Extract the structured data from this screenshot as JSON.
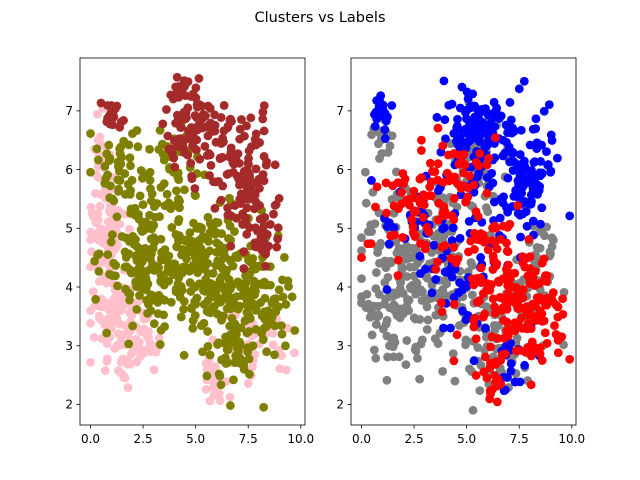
{
  "title": "Clusters vs Labels",
  "chart_data": [
    {
      "type": "scatter",
      "title": "",
      "xlabel": "",
      "ylabel": "",
      "xlim": [
        -0.5,
        10.2
      ],
      "ylim": [
        1.65,
        7.9
      ],
      "xticks": [
        "0.0",
        "2.5",
        "5.0",
        "7.5",
        "10.0"
      ],
      "yticks": [
        "2",
        "3",
        "4",
        "5",
        "6",
        "7"
      ],
      "colored_by": "cluster",
      "series": [
        {
          "color": "#ffc0cb",
          "regions": [
            {
              "cx": 0.7,
              "cy": 4.9,
              "rx": 0.9,
              "ry": 1.0,
              "n": 70
            },
            {
              "cx": 1.3,
              "cy": 3.5,
              "rx": 1.0,
              "ry": 0.7,
              "n": 90
            },
            {
              "cx": 2.3,
              "cy": 3.0,
              "rx": 0.8,
              "ry": 0.4,
              "n": 40
            },
            {
              "cx": 0.5,
              "cy": 6.2,
              "rx": 0.4,
              "ry": 0.6,
              "n": 18
            },
            {
              "cx": 5.8,
              "cy": 2.5,
              "rx": 0.5,
              "ry": 0.5,
              "n": 25
            },
            {
              "cx": 7.2,
              "cy": 2.8,
              "rx": 0.8,
              "ry": 0.6,
              "n": 25
            },
            {
              "cx": 8.5,
              "cy": 3.0,
              "rx": 1.0,
              "ry": 0.5,
              "n": 20
            }
          ]
        },
        {
          "color": "#808000",
          "regions": [
            {
              "cx": 2.8,
              "cy": 4.6,
              "rx": 2.0,
              "ry": 1.1,
              "n": 160
            },
            {
              "cx": 5.5,
              "cy": 4.3,
              "rx": 2.2,
              "ry": 1.1,
              "n": 200
            },
            {
              "cx": 8.0,
              "cy": 3.8,
              "rx": 1.6,
              "ry": 1.0,
              "n": 110
            },
            {
              "cx": 1.5,
              "cy": 6.1,
              "rx": 1.0,
              "ry": 0.6,
              "n": 40
            },
            {
              "cx": 6.5,
              "cy": 2.8,
              "rx": 0.9,
              "ry": 0.6,
              "n": 35
            },
            {
              "cx": 4.0,
              "cy": 6.3,
              "rx": 1.2,
              "ry": 0.5,
              "n": 30
            }
          ]
        },
        {
          "color": "#a52a2a",
          "regions": [
            {
              "cx": 5.2,
              "cy": 6.6,
              "rx": 1.4,
              "ry": 0.7,
              "n": 90
            },
            {
              "cx": 7.5,
              "cy": 5.8,
              "rx": 1.3,
              "ry": 0.9,
              "n": 110
            },
            {
              "cx": 4.5,
              "cy": 7.3,
              "rx": 0.6,
              "ry": 0.3,
              "n": 20
            },
            {
              "cx": 1.0,
              "cy": 6.9,
              "rx": 0.4,
              "ry": 0.25,
              "n": 20
            },
            {
              "cx": 8.2,
              "cy": 4.8,
              "rx": 0.8,
              "ry": 0.4,
              "n": 25
            }
          ]
        }
      ]
    },
    {
      "type": "scatter",
      "title": "",
      "xlabel": "",
      "ylabel": "",
      "xlim": [
        -0.5,
        10.2
      ],
      "ylim": [
        1.65,
        7.9
      ],
      "xticks": [
        "0.0",
        "2.5",
        "5.0",
        "7.5",
        "10.0"
      ],
      "yticks": [
        "2",
        "3",
        "4",
        "5",
        "6",
        "7"
      ],
      "colored_by": "label",
      "series": [
        {
          "color": "#808080",
          "regions": [
            {
              "cx": 1.8,
              "cy": 4.2,
              "rx": 1.7,
              "ry": 1.4,
              "n": 170
            },
            {
              "cx": 3.8,
              "cy": 4.4,
              "rx": 1.4,
              "ry": 1.2,
              "n": 110
            },
            {
              "cx": 6.5,
              "cy": 3.2,
              "rx": 1.8,
              "ry": 1.0,
              "n": 90
            },
            {
              "cx": 5.5,
              "cy": 6.0,
              "rx": 1.2,
              "ry": 0.8,
              "n": 50
            },
            {
              "cx": 8.5,
              "cy": 4.6,
              "rx": 1.0,
              "ry": 0.9,
              "n": 40
            },
            {
              "cx": 1.0,
              "cy": 6.5,
              "rx": 0.5,
              "ry": 0.4,
              "n": 15
            }
          ]
        },
        {
          "color": "#0000ff",
          "regions": [
            {
              "cx": 5.5,
              "cy": 6.6,
              "rx": 1.4,
              "ry": 0.8,
              "n": 130
            },
            {
              "cx": 7.8,
              "cy": 5.9,
              "rx": 1.2,
              "ry": 0.9,
              "n": 110
            },
            {
              "cx": 1.0,
              "cy": 6.9,
              "rx": 0.4,
              "ry": 0.3,
              "n": 22
            },
            {
              "cx": 5.0,
              "cy": 4.3,
              "rx": 2.0,
              "ry": 1.0,
              "n": 50
            },
            {
              "cx": 2.5,
              "cy": 5.0,
              "rx": 1.5,
              "ry": 0.8,
              "n": 30
            },
            {
              "cx": 7.0,
              "cy": 2.7,
              "rx": 1.0,
              "ry": 0.6,
              "n": 20
            }
          ]
        },
        {
          "color": "#ff0000",
          "regions": [
            {
              "cx": 8.0,
              "cy": 3.6,
              "rx": 1.4,
              "ry": 0.9,
              "n": 120
            },
            {
              "cx": 6.0,
              "cy": 4.2,
              "rx": 1.5,
              "ry": 1.2,
              "n": 80
            },
            {
              "cx": 2.5,
              "cy": 5.3,
              "rx": 1.7,
              "ry": 1.0,
              "n": 70
            },
            {
              "cx": 4.5,
              "cy": 6.0,
              "rx": 1.5,
              "ry": 0.6,
              "n": 30
            },
            {
              "cx": 6.2,
              "cy": 2.5,
              "rx": 0.6,
              "ry": 0.5,
              "n": 20
            }
          ]
        }
      ]
    }
  ]
}
